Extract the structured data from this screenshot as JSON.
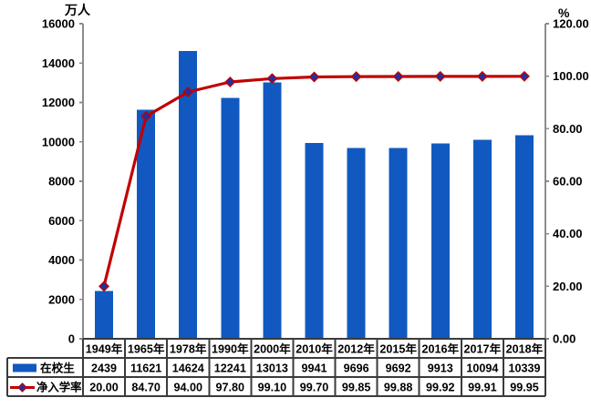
{
  "chart_data": {
    "type": "bar-line-combo",
    "categories": [
      "1949年",
      "1965年",
      "1978年",
      "1990年",
      "2000年",
      "2010年",
      "2012年",
      "2015年",
      "2016年",
      "2017年",
      "2018年"
    ],
    "series": [
      {
        "name": "在校生",
        "type": "bar",
        "axis": "left",
        "values": [
          2439,
          11621,
          14624,
          12241,
          13013,
          9941,
          9696,
          9692,
          9913,
          10094,
          10339
        ]
      },
      {
        "name": "净入学率",
        "type": "line",
        "axis": "right",
        "values": [
          20.0,
          84.7,
          94.0,
          97.8,
          99.1,
          99.7,
          99.85,
          99.88,
          99.92,
          99.91,
          99.95
        ]
      }
    ],
    "left_axis": {
      "title": "万人",
      "min": 0,
      "max": 16000,
      "step": 2000,
      "tick_labels": [
        "0",
        "2000",
        "4000",
        "6000",
        "8000",
        "10000",
        "12000",
        "14000",
        "16000"
      ]
    },
    "right_axis": {
      "title": "%",
      "min": 0,
      "max": 120,
      "step": 20,
      "tick_labels": [
        "0.00",
        "20.00",
        "40.00",
        "60.00",
        "80.00",
        "100.00",
        "120.00"
      ]
    },
    "grid": false,
    "legend_position": "table-left",
    "colors": {
      "bar": "#1159C1",
      "line": "#C00000",
      "marker_fill": "#232FA2",
      "marker_stroke": "#C00000",
      "axis_line": "#8C8C8C",
      "table_border": "#3B3B3B",
      "text": "#000000"
    }
  },
  "data_table": {
    "header_row": [
      "1949年",
      "1965年",
      "1978年",
      "1990年",
      "2000年",
      "2010年",
      "2012年",
      "2015年",
      "2016年",
      "2017年",
      "2018年"
    ],
    "rows": [
      {
        "legend": "在校生",
        "legend_key": "bar-swatch",
        "cells": [
          "2439",
          "11621",
          "14624",
          "12241",
          "13013",
          "9941",
          "9696",
          "9692",
          "9913",
          "10094",
          "10339"
        ]
      },
      {
        "legend": "净入学率",
        "legend_key": "line-marker",
        "cells": [
          "20.00",
          "84.70",
          "94.00",
          "97.80",
          "99.10",
          "99.70",
          "99.85",
          "99.88",
          "99.92",
          "99.91",
          "99.95"
        ]
      }
    ]
  }
}
